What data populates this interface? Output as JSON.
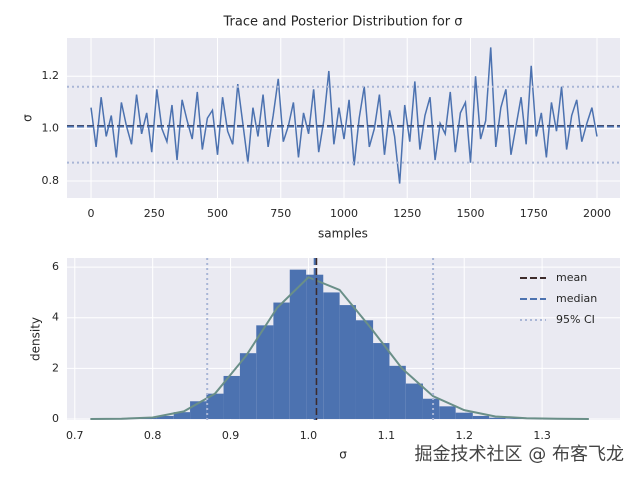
{
  "chart_data": [
    {
      "type": "line",
      "title": "Trace and Posterior Distribution for σ",
      "x_label": "samples",
      "y_label": "σ",
      "x": [
        0,
        20,
        40,
        60,
        80,
        100,
        120,
        140,
        160,
        180,
        200,
        220,
        240,
        260,
        280,
        300,
        320,
        340,
        360,
        380,
        400,
        420,
        440,
        460,
        480,
        500,
        520,
        540,
        560,
        580,
        600,
        620,
        640,
        660,
        680,
        700,
        720,
        740,
        760,
        780,
        800,
        820,
        840,
        860,
        880,
        900,
        920,
        940,
        960,
        980,
        1000,
        1020,
        1040,
        1060,
        1080,
        1100,
        1120,
        1140,
        1160,
        1180,
        1200,
        1220,
        1240,
        1260,
        1280,
        1300,
        1320,
        1340,
        1360,
        1380,
        1400,
        1420,
        1440,
        1460,
        1480,
        1500,
        1520,
        1540,
        1560,
        1580,
        1600,
        1620,
        1640,
        1660,
        1680,
        1700,
        1720,
        1740,
        1760,
        1780,
        1800,
        1820,
        1840,
        1860,
        1880,
        1900,
        1920,
        1940,
        1960,
        1980,
        2000
      ],
      "values": [
        1.08,
        0.93,
        1.12,
        0.97,
        1.05,
        0.89,
        1.1,
        1.01,
        0.94,
        1.13,
        0.98,
        1.06,
        0.91,
        1.15,
        1.0,
        0.95,
        1.09,
        0.88,
        1.11,
        1.03,
        0.96,
        1.14,
        0.92,
        1.04,
        1.07,
        0.9,
        1.12,
        0.99,
        0.94,
        1.17,
        1.02,
        0.87,
        1.08,
        0.97,
        1.13,
        0.93,
        1.05,
        1.19,
        0.95,
        1.01,
        1.1,
        0.89,
        1.06,
        0.98,
        1.15,
        0.91,
        1.03,
        1.22,
        0.94,
        1.08,
        0.96,
        1.11,
        0.86,
        1.04,
        1.16,
        0.93,
        1.0,
        1.13,
        0.9,
        1.07,
        0.97,
        0.79,
        1.09,
        0.95,
        1.18,
        0.92,
        1.05,
        1.12,
        0.88,
        1.02,
        0.98,
        1.14,
        0.91,
        1.06,
        1.1,
        0.87,
        1.2,
        0.96,
        1.03,
        1.31,
        0.93,
        1.08,
        1.15,
        0.9,
        1.01,
        1.12,
        0.94,
        1.24,
        0.97,
        1.06,
        0.89,
        1.1,
        0.99,
        1.16,
        0.92,
        1.05,
        1.11,
        0.95,
        1.02,
        1.08,
        0.97
      ],
      "color": "#4c72b0",
      "reference_lines": [
        {
          "values": [
            1.01
          ],
          "color": "#3d2b2b",
          "dash": "dashed"
        },
        {
          "values": [
            1.008
          ],
          "color": "#4c72b0",
          "dash": "dashed"
        },
        {
          "values": [
            0.87,
            1.16
          ],
          "color": "#a9b6d6",
          "dash": "dotted"
        }
      ],
      "xlim": [
        -95,
        2091
      ],
      "ylim": [
        0.735,
        1.346
      ],
      "xticks": [
        0,
        250,
        500,
        750,
        1000,
        1250,
        1500,
        1750,
        2000
      ],
      "yticks": [
        0.8,
        {
          "value": 1,
          "label": "1.0"
        },
        1.2
      ],
      "grid": true
    },
    {
      "type": "histogram",
      "x_label": "σ",
      "y_label": "density",
      "bins": [
        0.72,
        0.741,
        0.763,
        0.784,
        0.805,
        0.827,
        0.848,
        0.869,
        0.891,
        0.912,
        0.933,
        0.955,
        0.976,
        0.997,
        1.019,
        1.04,
        1.061,
        1.083,
        1.104,
        1.125,
        1.147,
        1.168,
        1.189,
        1.211,
        1.232,
        1.253,
        1.275,
        1.296,
        1.317,
        1.339,
        1.36
      ],
      "counts": [
        0,
        0.005,
        0.02,
        0.05,
        0.12,
        0.27,
        0.7,
        1.0,
        1.7,
        2.6,
        3.7,
        4.6,
        5.9,
        5.7,
        5.0,
        4.5,
        3.9,
        3.0,
        2.1,
        1.4,
        0.8,
        0.5,
        0.25,
        0.12,
        0.05,
        0.02,
        0.01,
        0,
        0,
        0
      ],
      "color": "#4c72b0",
      "kde": {
        "x": [
          0.72,
          0.76,
          0.8,
          0.84,
          0.88,
          0.92,
          0.96,
          1.0,
          1.04,
          1.08,
          1.12,
          1.16,
          1.2,
          1.24,
          1.28,
          1.32,
          1.36
        ],
        "values": [
          0,
          0.01,
          0.06,
          0.3,
          1.0,
          2.5,
          4.4,
          5.6,
          5.1,
          3.6,
          2.0,
          0.9,
          0.35,
          0.1,
          0.03,
          0.01,
          0
        ],
        "color": "#6a8f88"
      },
      "vlines": [
        {
          "name": "mean",
          "values": [
            1.01
          ],
          "color": "#3d2b2b",
          "dash": "dashed"
        },
        {
          "name": "median",
          "values": [
            1.008
          ],
          "color": "#4c72b0",
          "dash": "dashed"
        },
        {
          "name": "95% CI",
          "values": [
            0.87,
            1.16
          ],
          "color": "#a9b6d6",
          "dash": "dotted"
        }
      ],
      "legend": "upper right",
      "xlim": [
        0.69,
        1.4
      ],
      "ylim": [
        -0.04,
        6.36
      ],
      "xticks": [
        0.7,
        0.8,
        0.9,
        {
          "value": 1,
          "label": "1.0"
        },
        1.1,
        1.2,
        1.3
      ],
      "yticks": [
        0,
        2,
        4,
        6
      ],
      "grid": true
    }
  ],
  "watermark": "掘金技术社区 @ 布客飞龙"
}
